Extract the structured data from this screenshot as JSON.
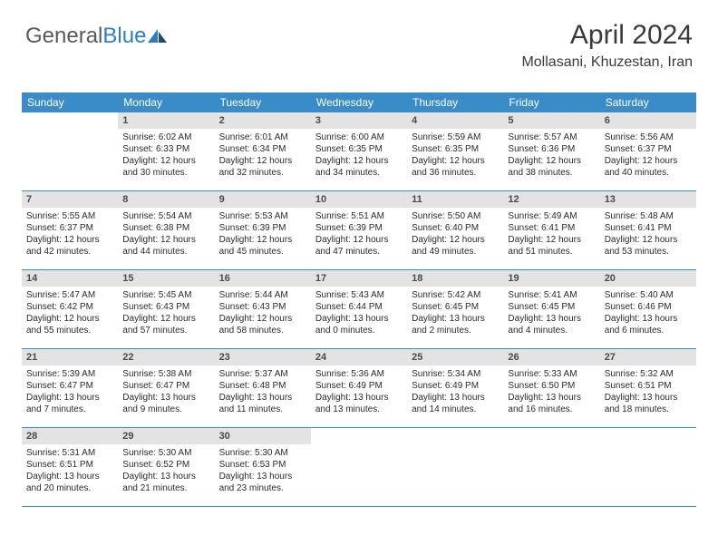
{
  "brand": {
    "part1": "General",
    "part2": "Blue"
  },
  "title": "April 2024",
  "location": "Mollasani, Khuzestan, Iran",
  "colors": {
    "header_bg": "#3a8cc9",
    "header_fg": "#ffffff",
    "num_bg": "#e3e3e3",
    "num_fg": "#4a4a4a",
    "rule": "#3a8cc9",
    "page_bg": "#ffffff",
    "text": "#2b2b2b",
    "brand_gray": "#5a5a5a",
    "brand_blue": "#2d7fc0"
  },
  "fonts": {
    "title_pt": 30,
    "location_pt": 16,
    "header_pt": 12,
    "daynum_pt": 11,
    "body_pt": 10
  },
  "headers": [
    "Sunday",
    "Monday",
    "Tuesday",
    "Wednesday",
    "Thursday",
    "Friday",
    "Saturday"
  ],
  "weeks": [
    [
      null,
      {
        "n": "1",
        "sr": "Sunrise: 6:02 AM",
        "ss": "Sunset: 6:33 PM",
        "d1": "Daylight: 12 hours",
        "d2": "and 30 minutes."
      },
      {
        "n": "2",
        "sr": "Sunrise: 6:01 AM",
        "ss": "Sunset: 6:34 PM",
        "d1": "Daylight: 12 hours",
        "d2": "and 32 minutes."
      },
      {
        "n": "3",
        "sr": "Sunrise: 6:00 AM",
        "ss": "Sunset: 6:35 PM",
        "d1": "Daylight: 12 hours",
        "d2": "and 34 minutes."
      },
      {
        "n": "4",
        "sr": "Sunrise: 5:59 AM",
        "ss": "Sunset: 6:35 PM",
        "d1": "Daylight: 12 hours",
        "d2": "and 36 minutes."
      },
      {
        "n": "5",
        "sr": "Sunrise: 5:57 AM",
        "ss": "Sunset: 6:36 PM",
        "d1": "Daylight: 12 hours",
        "d2": "and 38 minutes."
      },
      {
        "n": "6",
        "sr": "Sunrise: 5:56 AM",
        "ss": "Sunset: 6:37 PM",
        "d1": "Daylight: 12 hours",
        "d2": "and 40 minutes."
      }
    ],
    [
      {
        "n": "7",
        "sr": "Sunrise: 5:55 AM",
        "ss": "Sunset: 6:37 PM",
        "d1": "Daylight: 12 hours",
        "d2": "and 42 minutes."
      },
      {
        "n": "8",
        "sr": "Sunrise: 5:54 AM",
        "ss": "Sunset: 6:38 PM",
        "d1": "Daylight: 12 hours",
        "d2": "and 44 minutes."
      },
      {
        "n": "9",
        "sr": "Sunrise: 5:53 AM",
        "ss": "Sunset: 6:39 PM",
        "d1": "Daylight: 12 hours",
        "d2": "and 45 minutes."
      },
      {
        "n": "10",
        "sr": "Sunrise: 5:51 AM",
        "ss": "Sunset: 6:39 PM",
        "d1": "Daylight: 12 hours",
        "d2": "and 47 minutes."
      },
      {
        "n": "11",
        "sr": "Sunrise: 5:50 AM",
        "ss": "Sunset: 6:40 PM",
        "d1": "Daylight: 12 hours",
        "d2": "and 49 minutes."
      },
      {
        "n": "12",
        "sr": "Sunrise: 5:49 AM",
        "ss": "Sunset: 6:41 PM",
        "d1": "Daylight: 12 hours",
        "d2": "and 51 minutes."
      },
      {
        "n": "13",
        "sr": "Sunrise: 5:48 AM",
        "ss": "Sunset: 6:41 PM",
        "d1": "Daylight: 12 hours",
        "d2": "and 53 minutes."
      }
    ],
    [
      {
        "n": "14",
        "sr": "Sunrise: 5:47 AM",
        "ss": "Sunset: 6:42 PM",
        "d1": "Daylight: 12 hours",
        "d2": "and 55 minutes."
      },
      {
        "n": "15",
        "sr": "Sunrise: 5:45 AM",
        "ss": "Sunset: 6:43 PM",
        "d1": "Daylight: 12 hours",
        "d2": "and 57 minutes."
      },
      {
        "n": "16",
        "sr": "Sunrise: 5:44 AM",
        "ss": "Sunset: 6:43 PM",
        "d1": "Daylight: 12 hours",
        "d2": "and 58 minutes."
      },
      {
        "n": "17",
        "sr": "Sunrise: 5:43 AM",
        "ss": "Sunset: 6:44 PM",
        "d1": "Daylight: 13 hours",
        "d2": "and 0 minutes."
      },
      {
        "n": "18",
        "sr": "Sunrise: 5:42 AM",
        "ss": "Sunset: 6:45 PM",
        "d1": "Daylight: 13 hours",
        "d2": "and 2 minutes."
      },
      {
        "n": "19",
        "sr": "Sunrise: 5:41 AM",
        "ss": "Sunset: 6:45 PM",
        "d1": "Daylight: 13 hours",
        "d2": "and 4 minutes."
      },
      {
        "n": "20",
        "sr": "Sunrise: 5:40 AM",
        "ss": "Sunset: 6:46 PM",
        "d1": "Daylight: 13 hours",
        "d2": "and 6 minutes."
      }
    ],
    [
      {
        "n": "21",
        "sr": "Sunrise: 5:39 AM",
        "ss": "Sunset: 6:47 PM",
        "d1": "Daylight: 13 hours",
        "d2": "and 7 minutes."
      },
      {
        "n": "22",
        "sr": "Sunrise: 5:38 AM",
        "ss": "Sunset: 6:47 PM",
        "d1": "Daylight: 13 hours",
        "d2": "and 9 minutes."
      },
      {
        "n": "23",
        "sr": "Sunrise: 5:37 AM",
        "ss": "Sunset: 6:48 PM",
        "d1": "Daylight: 13 hours",
        "d2": "and 11 minutes."
      },
      {
        "n": "24",
        "sr": "Sunrise: 5:36 AM",
        "ss": "Sunset: 6:49 PM",
        "d1": "Daylight: 13 hours",
        "d2": "and 13 minutes."
      },
      {
        "n": "25",
        "sr": "Sunrise: 5:34 AM",
        "ss": "Sunset: 6:49 PM",
        "d1": "Daylight: 13 hours",
        "d2": "and 14 minutes."
      },
      {
        "n": "26",
        "sr": "Sunrise: 5:33 AM",
        "ss": "Sunset: 6:50 PM",
        "d1": "Daylight: 13 hours",
        "d2": "and 16 minutes."
      },
      {
        "n": "27",
        "sr": "Sunrise: 5:32 AM",
        "ss": "Sunset: 6:51 PM",
        "d1": "Daylight: 13 hours",
        "d2": "and 18 minutes."
      }
    ],
    [
      {
        "n": "28",
        "sr": "Sunrise: 5:31 AM",
        "ss": "Sunset: 6:51 PM",
        "d1": "Daylight: 13 hours",
        "d2": "and 20 minutes."
      },
      {
        "n": "29",
        "sr": "Sunrise: 5:30 AM",
        "ss": "Sunset: 6:52 PM",
        "d1": "Daylight: 13 hours",
        "d2": "and 21 minutes."
      },
      {
        "n": "30",
        "sr": "Sunrise: 5:30 AM",
        "ss": "Sunset: 6:53 PM",
        "d1": "Daylight: 13 hours",
        "d2": "and 23 minutes."
      },
      null,
      null,
      null,
      null
    ]
  ]
}
